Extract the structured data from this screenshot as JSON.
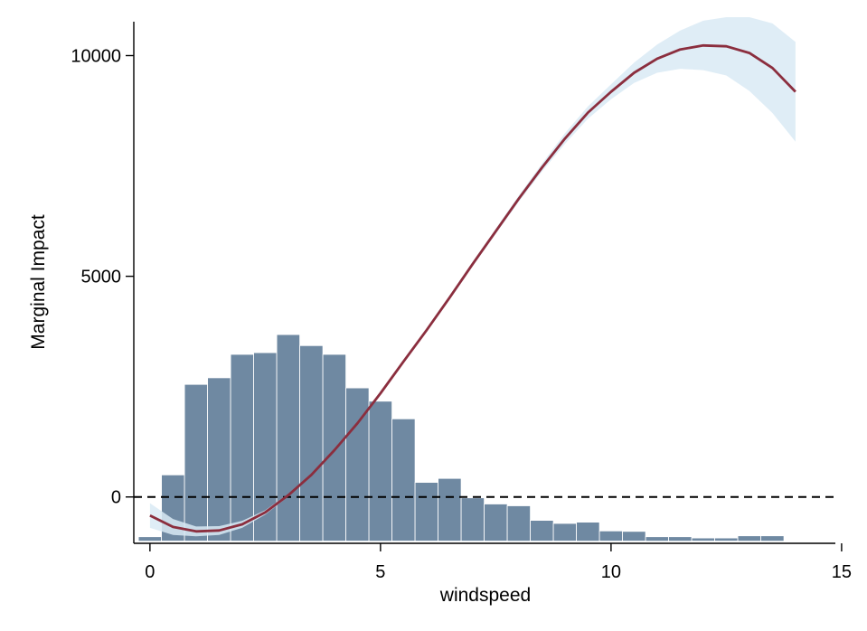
{
  "chart_data": {
    "type": "line",
    "title": "",
    "xlabel": "windspeed",
    "ylabel": "Marginal Impact",
    "xlim": [
      -0.35,
      15.1
    ],
    "ylim": [
      -1050,
      10850
    ],
    "xticks": [
      0,
      5,
      10,
      15
    ],
    "yticks": [
      0,
      5000,
      10000
    ],
    "grid": false,
    "legend": "none",
    "reference_line": {
      "y": 0,
      "style": "dashed"
    },
    "colors": {
      "histogram": "#6F89A2",
      "histogram_edge": "#ffffff",
      "line": "#8B2E3E",
      "band": "#D9EAF5",
      "axis": "#000000",
      "refline": "#000000"
    },
    "histogram": {
      "baseline": -1000,
      "bin_edges": [
        -0.25,
        0.25,
        0.75,
        1.25,
        1.75,
        2.25,
        2.75,
        3.25,
        3.75,
        4.25,
        4.75,
        5.25,
        5.75,
        6.25,
        6.75,
        7.25,
        7.75,
        8.25,
        8.75,
        9.25,
        9.75,
        10.25,
        10.75,
        11.25,
        11.75,
        12.25,
        12.75,
        13.25,
        13.75
      ],
      "heights": [
        -900,
        500,
        2550,
        2700,
        3230,
        3270,
        3680,
        3430,
        3230,
        2470,
        2170,
        1770,
        330,
        420,
        -20,
        -160,
        -200,
        -530,
        -600,
        -570,
        -770,
        -780,
        -900,
        -900,
        -930,
        -930,
        -880,
        -880
      ]
    },
    "series": [
      {
        "x": [
          0,
          0.5,
          1,
          1.5,
          2,
          2.5,
          3,
          3.5,
          4,
          4.5,
          5,
          5.5,
          6,
          6.5,
          7,
          7.5,
          8,
          8.5,
          9,
          9.5,
          10,
          10.5,
          11,
          11.5,
          12,
          12.5,
          13,
          13.5,
          14
        ],
        "values": [
          -420,
          -680,
          -780,
          -760,
          -620,
          -350,
          40,
          500,
          1060,
          1670,
          2350,
          3070,
          3780,
          4520,
          5280,
          6020,
          6760,
          7460,
          8120,
          8710,
          9180,
          9610,
          9930,
          10140,
          10230,
          10210,
          10060,
          9720,
          9180
        ],
        "lower": [
          -700,
          -860,
          -890,
          -860,
          -700,
          -400,
          10,
          470,
          1030,
          1640,
          2310,
          3030,
          3740,
          4470,
          5230,
          5960,
          6690,
          7370,
          8000,
          8570,
          9010,
          9380,
          9610,
          9700,
          9670,
          9550,
          9200,
          8700,
          8050
        ],
        "upper": [
          -140,
          -500,
          -670,
          -660,
          -540,
          -300,
          70,
          530,
          1090,
          1700,
          2390,
          3110,
          3820,
          4570,
          5330,
          6080,
          6830,
          7550,
          8240,
          8850,
          9350,
          9840,
          10250,
          10570,
          10790,
          10870,
          10870,
          10730,
          10310
        ]
      }
    ]
  }
}
